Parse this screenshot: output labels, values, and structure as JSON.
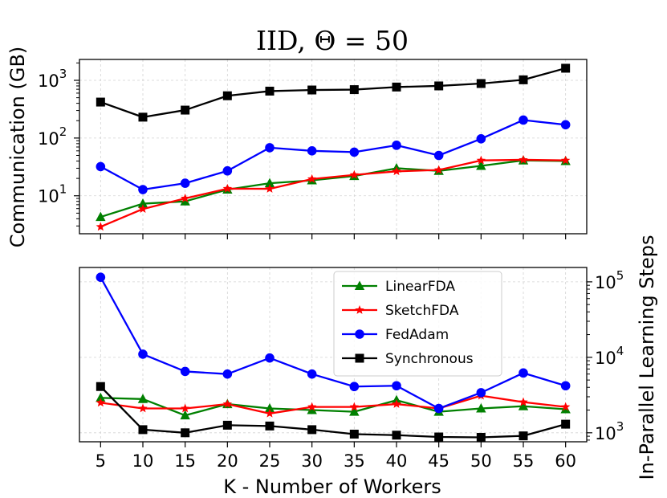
{
  "chart_data": {
    "title": "IID, Θ = 50",
    "xlabel": "K - Number of Workers",
    "x": [
      5,
      10,
      15,
      20,
      25,
      30,
      35,
      40,
      45,
      50,
      55,
      60
    ],
    "xlim": [
      2.5,
      62.5
    ],
    "x_tick_labels": [
      "5",
      "10",
      "15",
      "20",
      "25",
      "30",
      "35",
      "40",
      "45",
      "50",
      "55",
      "60"
    ],
    "series_styles": [
      {
        "name": "LinearFDA",
        "color": "#008000",
        "marker": "triangle"
      },
      {
        "name": "SketchFDA",
        "color": "#ff0000",
        "marker": "star"
      },
      {
        "name": "FedAdam",
        "color": "#0000ff",
        "marker": "circle"
      },
      {
        "name": "Synchronous",
        "color": "#000000",
        "marker": "square"
      }
    ],
    "panels": [
      {
        "type": "line",
        "yscale": "log",
        "ylabel": "Communication (GB)",
        "ylabel_side": "left",
        "ylim": [
          2.2,
          2300
        ],
        "y_ticks": [
          10,
          100,
          1000
        ],
        "y_tick_labels": [
          {
            "base": "10",
            "exp": "1"
          },
          {
            "base": "10",
            "exp": "2"
          },
          {
            "base": "10",
            "exp": "3"
          }
        ],
        "grid": true,
        "legend": false,
        "series": [
          {
            "name": "LinearFDA",
            "values": [
              4.3,
              7.3,
              8.0,
              12.8,
              16.5,
              18.5,
              22.0,
              30.0,
              27.0,
              33.0,
              41.0,
              40.0
            ]
          },
          {
            "name": "SketchFDA",
            "values": [
              2.9,
              5.9,
              9.0,
              13.3,
              13.2,
              19.5,
              23.0,
              26.5,
              28.0,
              41.0,
              42.0,
              41.0
            ]
          },
          {
            "name": "FedAdam",
            "values": [
              32,
              12.8,
              16.5,
              27,
              68,
              60,
              57,
              75,
              50,
              97,
              205,
              170
            ]
          },
          {
            "name": "Synchronous",
            "values": [
              420,
              230,
              305,
              540,
              650,
              680,
              690,
              765,
              800,
              880,
              1020,
              1620
            ]
          }
        ]
      },
      {
        "type": "line",
        "yscale": "log",
        "ylabel": "In-Parallel Learning Steps",
        "ylabel_side": "right",
        "ylim": [
          760,
          155000
        ],
        "y_ticks": [
          1000,
          10000,
          100000
        ],
        "y_tick_labels": [
          {
            "base": "10",
            "exp": "3"
          },
          {
            "base": "10",
            "exp": "4"
          },
          {
            "base": "10",
            "exp": "5"
          }
        ],
        "grid": true,
        "legend": true,
        "legend_position": "top-right",
        "series": [
          {
            "name": "LinearFDA",
            "values": [
              2900,
              2800,
              1700,
              2400,
              2100,
              2000,
              1900,
              2700,
              1900,
              2100,
              2250,
              2050
            ]
          },
          {
            "name": "SketchFDA",
            "values": [
              2500,
              2100,
              2100,
              2400,
              1800,
              2200,
              2200,
              2400,
              2100,
              3100,
              2550,
              2200
            ]
          },
          {
            "name": "FedAdam",
            "values": [
              115000,
              11000,
              6500,
              6000,
              9800,
              6000,
              4100,
              4200,
              2100,
              3400,
              6200,
              4200
            ]
          },
          {
            "name": "Synchronous",
            "values": [
              4100,
              1100,
              1000,
              1260,
              1230,
              1100,
              960,
              930,
              880,
              870,
              910,
              1300
            ]
          }
        ]
      }
    ]
  }
}
